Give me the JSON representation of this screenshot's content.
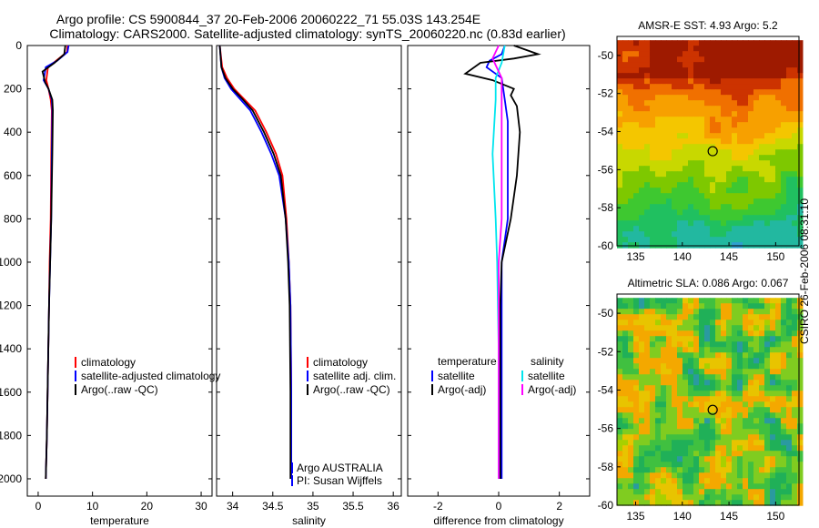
{
  "header": {
    "title_line1": "Argo profile: CS 5900844_37 20-Feb-2006 20060222_71 55.03S 143.254E",
    "title_line2": "Climatology: CARS2000. Satellite-adjusted climatology: synTS_20060220.nc (0.83d earlier)"
  },
  "watermark": "CSIRO 26-Feb-2006 08:31:10",
  "colors": {
    "clim": "#ff0000",
    "sat": "#0000ff",
    "argo": "#000000",
    "cyan": "#00e5ee",
    "magenta": "#ff00ff"
  },
  "chart_data": [
    {
      "type": "line",
      "id": "temperature",
      "xlabel": "temperature",
      "ylabel": "",
      "xlim": [
        -2,
        32
      ],
      "ylim": [
        2080,
        0
      ],
      "xticks": [
        "0",
        "10",
        "20",
        "30"
      ],
      "yticks": [
        "0",
        "200",
        "400",
        "600",
        "800",
        "1000",
        "1200",
        "1400",
        "1600",
        "1800",
        "2000"
      ],
      "legend": [
        "climatology",
        "satellite-adjusted climatology",
        "Argo(..raw -QC)"
      ],
      "series": [
        {
          "name": "climatology",
          "color": "#ff0000",
          "x": [
            5.4,
            5.3,
            3.8,
            1.8,
            1.5,
            1.9,
            2.3,
            2.5,
            2.4,
            2.3,
            2.1,
            2.0,
            1.8,
            1.6,
            1.4
          ],
          "y": [
            0,
            30,
            60,
            100,
            160,
            200,
            250,
            300,
            500,
            800,
            1000,
            1200,
            1500,
            1800,
            2000
          ]
        },
        {
          "name": "satellite-adjusted climatology",
          "color": "#0000ff",
          "x": [
            5.6,
            5.4,
            3.5,
            1.4,
            1.0,
            1.9,
            2.5,
            2.6,
            2.5,
            2.4,
            2.2,
            2.0,
            1.8,
            1.6,
            1.4
          ],
          "y": [
            0,
            30,
            70,
            100,
            160,
            200,
            250,
            300,
            500,
            800,
            1000,
            1200,
            1500,
            1800,
            2000
          ]
        },
        {
          "name": "Argo(..raw -QC)",
          "color": "#000000",
          "x": [
            5.0,
            4.8,
            3.0,
            0.8,
            1.3,
            1.9,
            2.6,
            2.7,
            2.6,
            2.4,
            2.2,
            2.0,
            1.8,
            1.6,
            1.4
          ],
          "y": [
            0,
            40,
            80,
            120,
            170,
            200,
            250,
            300,
            500,
            800,
            1000,
            1200,
            1500,
            1800,
            2000
          ]
        }
      ]
    },
    {
      "type": "line",
      "id": "salinity",
      "xlabel": "salinity",
      "ylabel": "",
      "xlim": [
        33.8,
        36.1
      ],
      "ylim": [
        2080,
        0
      ],
      "xticks": [
        "34",
        "34.5",
        "35",
        "35.5",
        "36"
      ],
      "legend": [
        "climatology",
        "satellite adj. clim.",
        "Argo(..raw -QC)"
      ],
      "annotation": [
        "Argo AUSTRALIA",
        "PI: Susan Wijffels"
      ],
      "series": [
        {
          "name": "climatology",
          "color": "#ff0000",
          "x": [
            33.84,
            33.87,
            33.93,
            34.02,
            34.15,
            34.28,
            34.42,
            34.54,
            34.62,
            34.67,
            34.7,
            34.72,
            34.73,
            34.73
          ],
          "y": [
            0,
            100,
            150,
            200,
            250,
            300,
            400,
            500,
            600,
            800,
            1000,
            1200,
            1600,
            2000
          ]
        },
        {
          "name": "satellite adj. clim.",
          "color": "#0000ff",
          "x": [
            33.84,
            33.86,
            33.9,
            33.98,
            34.1,
            34.22,
            34.36,
            34.48,
            34.58,
            34.66,
            34.7,
            34.72,
            34.73,
            34.73
          ],
          "y": [
            0,
            100,
            150,
            200,
            250,
            300,
            400,
            500,
            600,
            800,
            1000,
            1200,
            1600,
            2000
          ]
        },
        {
          "name": "Argo(..raw -QC)",
          "color": "#000000",
          "x": [
            33.84,
            33.86,
            33.91,
            34.0,
            34.13,
            34.25,
            34.39,
            34.51,
            34.6,
            34.66,
            34.69,
            34.71,
            34.72,
            34.72
          ],
          "y": [
            0,
            100,
            150,
            200,
            250,
            300,
            400,
            500,
            600,
            800,
            1000,
            1200,
            1600,
            2000
          ]
        }
      ]
    },
    {
      "type": "line",
      "id": "difference",
      "xlabel": "difference from climatology",
      "ylabel": "",
      "xlim": [
        -3,
        3
      ],
      "ylim": [
        2080,
        0
      ],
      "xticks": [
        "-2",
        "0",
        "2"
      ],
      "legend_temperature": {
        "heading": "temperature",
        "items": [
          "satellite",
          "Argo(-adj)"
        ]
      },
      "legend_salinity": {
        "heading": "salinity",
        "items": [
          "satellite",
          "Argo(-adj)"
        ]
      },
      "series": [
        {
          "name": "temperature satellite",
          "color": "#0000ff",
          "x": [
            0.2,
            0.1,
            -0.3,
            -0.4,
            0.1,
            0.2,
            0.3,
            0.3,
            0.3,
            0.1,
            0.1,
            0.1,
            0.1
          ],
          "y": [
            0,
            40,
            70,
            100,
            150,
            250,
            350,
            500,
            800,
            1000,
            1400,
            1800,
            2000
          ]
        },
        {
          "name": "temperature Argo(-adj)",
          "color": "#000000",
          "x": [
            0.5,
            1.3,
            0.5,
            -0.6,
            -1.1,
            -0.2,
            0.5,
            0.4,
            0.6,
            0.7,
            0.6,
            0.4,
            0.1,
            0.05,
            0.05,
            0.05,
            0.05
          ],
          "y": [
            0,
            40,
            60,
            80,
            130,
            160,
            200,
            230,
            280,
            400,
            600,
            800,
            1000,
            1200,
            1500,
            1800,
            2000
          ]
        },
        {
          "name": "salinity satellite",
          "color": "#00e5ee",
          "x": [
            0.2,
            0.1,
            -0.1,
            -0.1,
            -0.2,
            -0.1,
            -0.05,
            0.0,
            0.0,
            0.0
          ],
          "y": [
            0,
            80,
            150,
            250,
            500,
            800,
            1000,
            1400,
            1800,
            2000
          ]
        },
        {
          "name": "salinity Argo(-adj)",
          "color": "#ff00ff",
          "x": [
            0.0,
            -0.2,
            0.1,
            0.1,
            0.1,
            0.1,
            0.0,
            0.0,
            0.0
          ],
          "y": [
            0,
            60,
            150,
            250,
            500,
            800,
            1000,
            1500,
            2000
          ]
        }
      ]
    },
    {
      "type": "heatmap",
      "id": "amsre_sst",
      "title": "AMSR-E SST: 4.93 Argo: 5.2",
      "xlim": [
        133,
        152.5
      ],
      "ylim": [
        -60,
        -49
      ],
      "xticks": [
        "135",
        "140",
        "145",
        "150"
      ],
      "yticks": [
        "-50",
        "-52",
        "-54",
        "-56",
        "-58",
        "-60"
      ],
      "argo_lon": 143.254,
      "argo_lat": -55.03,
      "colors": [
        "#9e1a00",
        "#cc3300",
        "#f07000",
        "#f7a000",
        "#f4c600",
        "#c8d800",
        "#7ec800",
        "#3ec830",
        "#20c060",
        "#22b8a0",
        "#2f9fd0"
      ]
    },
    {
      "type": "heatmap",
      "id": "altimetric_sla",
      "title": "Altimetric SLA: 0.086 Argo: 0.067",
      "xlim": [
        133,
        152.5
      ],
      "ylim": [
        -60,
        -49
      ],
      "xticks": [
        "135",
        "140",
        "145",
        "150"
      ],
      "yticks": [
        "-50",
        "-52",
        "-54",
        "-56",
        "-58",
        "-60"
      ],
      "argo_lon": 143.254,
      "argo_lat": -55.03,
      "colors": [
        "#c8d400",
        "#a8d000",
        "#e8c400",
        "#f4a800",
        "#80cc20",
        "#40c040",
        "#20b058",
        "#2a9aa0"
      ]
    }
  ]
}
